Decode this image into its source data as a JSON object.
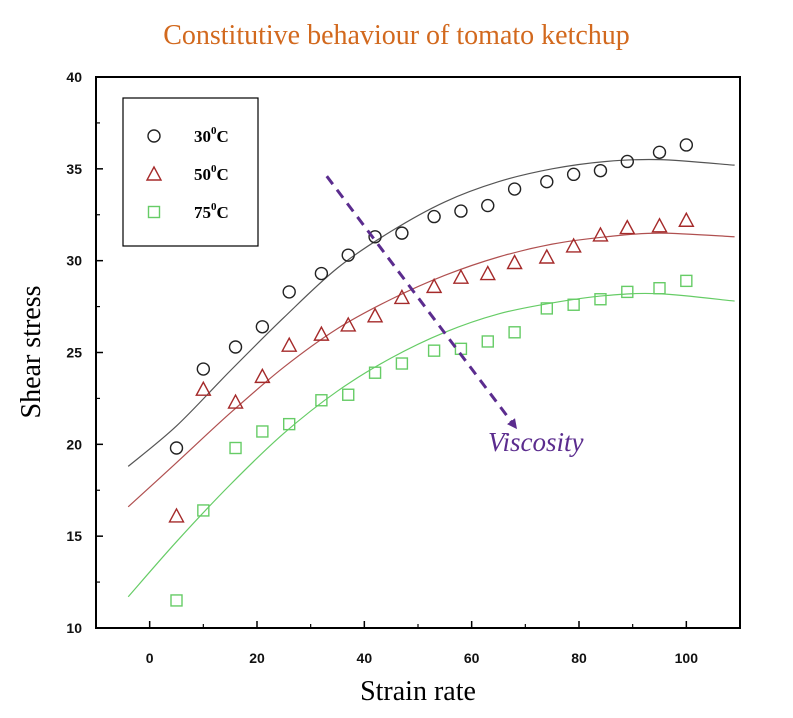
{
  "chart_data": {
    "type": "scatter",
    "title": "Constitutive behaviour of tomato ketchup",
    "xlabel": "Strain rate",
    "ylabel": "Shear stress",
    "xlim": [
      -10,
      110
    ],
    "ylim": [
      10,
      40
    ],
    "xticks": [
      0,
      20,
      40,
      60,
      80,
      100
    ],
    "yticks": [
      10,
      15,
      20,
      25,
      30,
      35,
      40
    ],
    "grid": false,
    "legend_position": "top-left",
    "series": [
      {
        "name": "30°C",
        "name_base": "30",
        "name_sup": "0",
        "name_unit": "C",
        "marker": "circle",
        "color": "#222222",
        "line_color": "#555555",
        "x": [
          5,
          10,
          16,
          21,
          26,
          32,
          37,
          42,
          47,
          53,
          58,
          63,
          68,
          74,
          79,
          84,
          89,
          95,
          100
        ],
        "y": [
          19.8,
          24.1,
          25.3,
          26.4,
          28.3,
          29.3,
          30.3,
          31.3,
          31.5,
          32.4,
          32.7,
          33.0,
          33.9,
          34.3,
          34.7,
          34.9,
          35.4,
          35.9,
          36.3
        ],
        "fit": [
          [
            -4,
            18.8
          ],
          [
            5,
            21.0
          ],
          [
            15,
            24.0
          ],
          [
            25,
            26.9
          ],
          [
            35,
            29.6
          ],
          [
            45,
            31.6
          ],
          [
            55,
            33.2
          ],
          [
            65,
            34.3
          ],
          [
            75,
            35.0
          ],
          [
            85,
            35.4
          ],
          [
            95,
            35.5
          ],
          [
            109,
            35.2
          ]
        ]
      },
      {
        "name": "50°C",
        "name_base": "50",
        "name_sup": "0",
        "name_unit": "C",
        "marker": "triangle",
        "color": "#a52a2a",
        "line_color": "#b05050",
        "x": [
          5,
          10,
          16,
          21,
          26,
          32,
          37,
          42,
          47,
          53,
          58,
          63,
          68,
          74,
          79,
          84,
          89,
          95,
          100
        ],
        "y": [
          16.1,
          23.0,
          22.3,
          23.7,
          25.4,
          26.0,
          26.5,
          27.0,
          28.0,
          28.6,
          29.1,
          29.3,
          29.9,
          30.2,
          30.8,
          31.4,
          31.8,
          31.9,
          32.2
        ],
        "fit": [
          [
            -4,
            16.6
          ],
          [
            5,
            19.0
          ],
          [
            15,
            21.7
          ],
          [
            25,
            24.2
          ],
          [
            35,
            26.3
          ],
          [
            45,
            27.9
          ],
          [
            55,
            29.2
          ],
          [
            65,
            30.2
          ],
          [
            75,
            30.9
          ],
          [
            85,
            31.3
          ],
          [
            95,
            31.5
          ],
          [
            109,
            31.3
          ]
        ]
      },
      {
        "name": "75°C",
        "name_base": "75",
        "name_sup": "0",
        "name_unit": "C",
        "marker": "square",
        "color": "#66cc66",
        "line_color": "#66cc66",
        "x": [
          5,
          10,
          16,
          21,
          26,
          32,
          37,
          42,
          47,
          53,
          58,
          63,
          68,
          74,
          79,
          84,
          89,
          95,
          100
        ],
        "y": [
          11.5,
          16.4,
          19.8,
          20.7,
          21.1,
          22.4,
          22.7,
          23.9,
          24.4,
          25.1,
          25.2,
          25.6,
          26.1,
          27.4,
          27.6,
          27.9,
          28.3,
          28.5,
          28.9
        ],
        "fit": [
          [
            -4,
            11.7
          ],
          [
            5,
            14.7
          ],
          [
            15,
            17.8
          ],
          [
            25,
            20.6
          ],
          [
            35,
            22.9
          ],
          [
            45,
            24.7
          ],
          [
            55,
            26.1
          ],
          [
            65,
            27.1
          ],
          [
            75,
            27.7
          ],
          [
            85,
            28.1
          ],
          [
            95,
            28.2
          ],
          [
            109,
            27.8
          ]
        ]
      }
    ],
    "annotation": {
      "text": "Viscosity",
      "arrow_from": [
        33,
        34.6
      ],
      "arrow_to": [
        68,
        21.0
      ],
      "color": "#5b2c8e"
    }
  }
}
